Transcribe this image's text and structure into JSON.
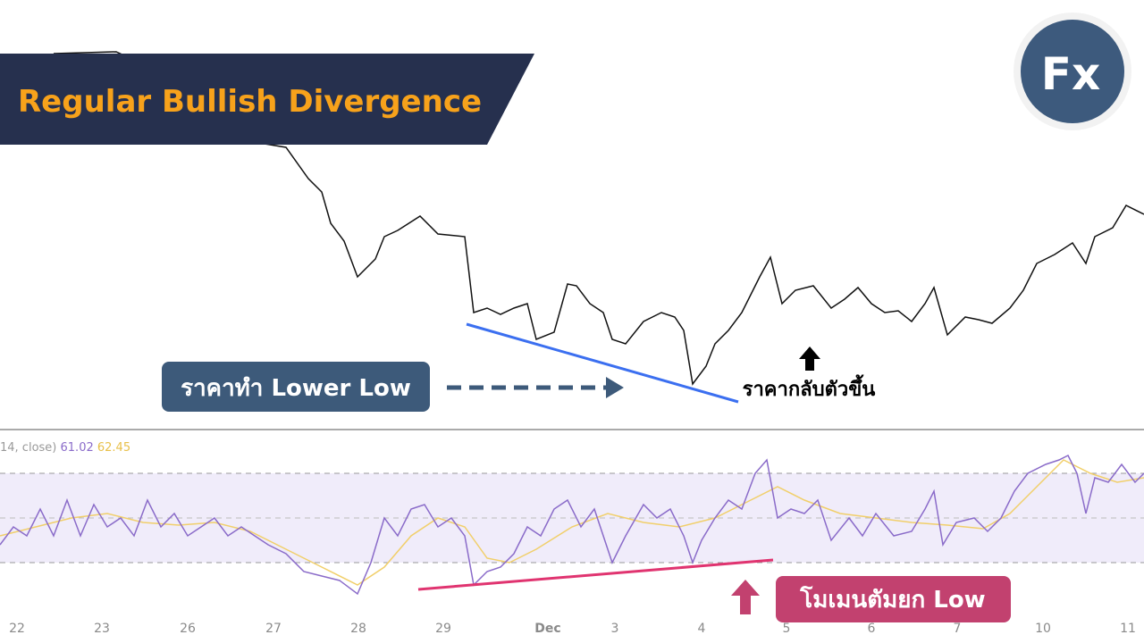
{
  "title": "Regular Bullish Divergence",
  "callouts": {
    "price_lower_low": "ราคาทำ Lower Low",
    "price_reversal": "ราคากลับตัวขึ้น",
    "momentum_higher_low": "โมเมนตัมยก Low"
  },
  "logo": "Fx",
  "indicator": {
    "label": "14, close)",
    "value1": "61.02",
    "value2": "62.45"
  },
  "x_axis": {
    "labels": [
      "22",
      "23",
      "26",
      "27",
      "28",
      "29",
      "Dec",
      "3",
      "4",
      "5",
      "6",
      "7",
      "10",
      "11"
    ]
  }
}
